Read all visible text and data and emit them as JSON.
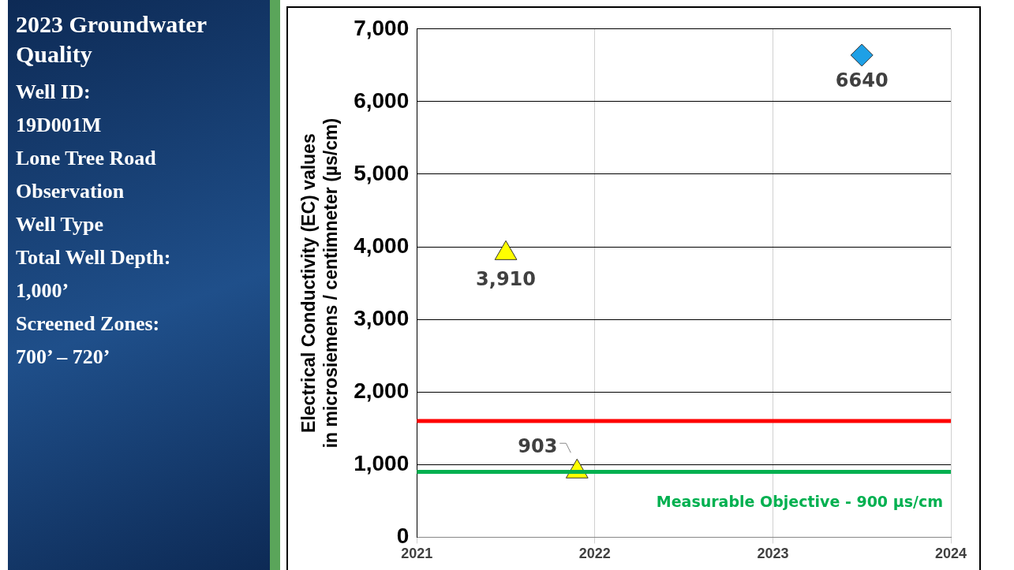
{
  "chart_data": {
    "type": "scatter",
    "title": "2023 Groundwater Quality",
    "annotations": [
      "Well ID:",
      "19D001M",
      "Lone Tree Road",
      "Observation",
      "Well Type",
      "Total Well Depth:",
      "1,000’",
      "Screened Zones:",
      "700’ – 720’"
    ],
    "ylabel": "Electrical Conductivity (EC) values\nin microsiemens / centimneter (µs/cm)",
    "xlim": [
      2021,
      2024
    ],
    "xticks": [
      2021,
      2022,
      2023,
      2024
    ],
    "ylim": [
      0,
      7000
    ],
    "yticks": [
      0,
      {
        "value": 1000,
        "label": "1,000"
      },
      {
        "value": 2000,
        "label": "2,000"
      },
      {
        "value": 3000,
        "label": "3,000"
      },
      {
        "value": 4000,
        "label": "4,000"
      },
      {
        "value": 5000,
        "label": "5,000"
      },
      {
        "value": 6000,
        "label": "6,000"
      },
      {
        "value": 7000,
        "label": "7,000"
      }
    ],
    "grid": true,
    "legend": false,
    "series": [
      {
        "color": "#ffff00",
        "marker": "triangle",
        "x": [
          2021.5,
          2021.9
        ],
        "values": [
          3910,
          903
        ],
        "value_labels": [
          "3,910",
          "903"
        ]
      },
      {
        "color": "#1ea0e6",
        "marker": "diamond",
        "x": [
          2023.5
        ],
        "values": [
          6640
        ],
        "value_labels": [
          "6640"
        ]
      }
    ],
    "ref_lines": [
      {
        "axis": "y",
        "value": 1600,
        "color": "#ff0000"
      },
      {
        "axis": "y",
        "value": 900,
        "color": "#00b050",
        "label": "Measurable Objective - 900 µs/cm"
      }
    ]
  }
}
